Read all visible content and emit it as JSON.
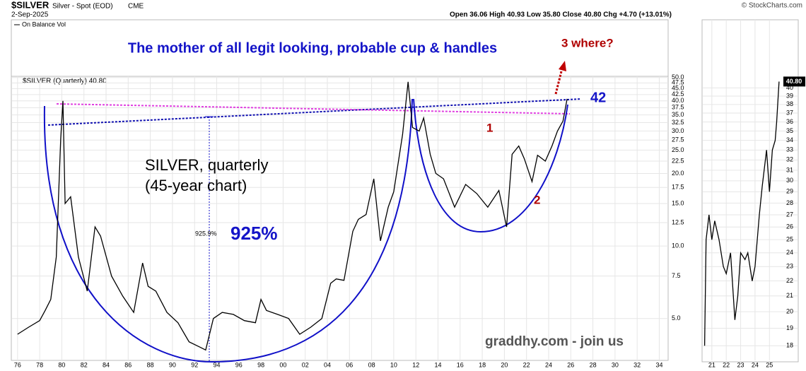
{
  "header": {
    "symbol": "$SILVER",
    "name": "Silver - Spot (EOD)",
    "exchange": "CME",
    "date": "2-Sep-2025",
    "source": "© StockCharts.com",
    "ohlc": "Open 36.06  High 40.93  Low 35.80  Close 40.80  Chg +4.70 (+13.01%)"
  },
  "indicator": "On Balance Vol",
  "chart_data": [
    {
      "type": "line",
      "title": "The mother of all legit looking, probable cup & handles",
      "log_scale": true,
      "grid": true,
      "annotations": [
        "SILVER, quarterly",
        "(45-year chart)",
        "925.9%",
        "925%",
        "1",
        "2",
        "3 where?",
        "42",
        "graddhy.com - join us"
      ],
      "x": [
        1976.0,
        1977.0,
        1978.0,
        1978.5,
        1979.0,
        1979.5,
        1979.9,
        1980.1,
        1980.3,
        1980.8,
        1981.5,
        1982.3,
        1983.0,
        1983.5,
        1984.5,
        1985.5,
        1986.5,
        1987.3,
        1987.8,
        1988.5,
        1989.5,
        1990.5,
        1991.5,
        1992.5,
        1993.0,
        1993.7,
        1994.5,
        1995.5,
        1996.5,
        1997.5,
        1998.0,
        1998.5,
        1999.5,
        2000.5,
        2001.5,
        2002.5,
        2003.5,
        2004.3,
        2004.8,
        2005.5,
        2006.3,
        2006.8,
        2007.5,
        2008.2,
        2008.8,
        2009.5,
        2010.0,
        2010.8,
        2011.3,
        2011.7,
        2012.3,
        2012.7,
        2013.3,
        2013.8,
        2014.5,
        2015.5,
        2016.5,
        2017.5,
        2018.5,
        2019.5,
        2020.2,
        2020.7,
        2021.3,
        2021.8,
        2022.5,
        2023.0,
        2023.7,
        2024.3,
        2024.8,
        2025.3,
        2025.67
      ],
      "series": [
        {
          "name": "$SILVER (Quarterly) 40.80",
          "color": "#000000",
          "values": [
            4.3,
            4.6,
            4.9,
            5.4,
            6.0,
            9.0,
            28,
            40,
            15,
            16,
            9,
            6.5,
            12,
            11,
            7.5,
            6.2,
            5.3,
            8.5,
            6.8,
            6.5,
            5.3,
            4.8,
            4.0,
            3.8,
            3.7,
            5.0,
            5.3,
            5.2,
            4.9,
            4.8,
            6.0,
            5.4,
            5.2,
            5.0,
            4.3,
            4.6,
            5.0,
            7.0,
            7.3,
            7.2,
            11.5,
            12.9,
            13.5,
            19,
            10.5,
            14.5,
            16.8,
            29,
            48,
            31,
            30,
            34,
            24,
            20,
            19,
            14.5,
            18,
            16.5,
            14.5,
            17,
            12,
            24,
            26,
            23,
            18.5,
            23.8,
            22.5,
            26,
            30,
            33,
            40.8
          ]
        }
      ],
      "xlim": [
        1975.5,
        2034.8
      ],
      "xticks": [
        {
          "value": 1976,
          "label": "76"
        },
        {
          "value": 1978,
          "label": "78"
        },
        {
          "value": 1980,
          "label": "80"
        },
        {
          "value": 1982,
          "label": "82"
        },
        {
          "value": 1984,
          "label": "84"
        },
        {
          "value": 1986,
          "label": "86"
        },
        {
          "value": 1988,
          "label": "88"
        },
        {
          "value": 1990,
          "label": "90"
        },
        {
          "value": 1992,
          "label": "92"
        },
        {
          "value": 1994,
          "label": "94"
        },
        {
          "value": 1996,
          "label": "96"
        },
        {
          "value": 1998,
          "label": "98"
        },
        {
          "value": 2000,
          "label": "00"
        },
        {
          "value": 2002,
          "label": "02"
        },
        {
          "value": 2004,
          "label": "04"
        },
        {
          "value": 2006,
          "label": "06"
        },
        {
          "value": 2008,
          "label": "08"
        },
        {
          "value": 2010,
          "label": "10"
        },
        {
          "value": 2012,
          "label": "12"
        },
        {
          "value": 2014,
          "label": "14"
        },
        {
          "value": 2016,
          "label": "16"
        },
        {
          "value": 2018,
          "label": "18"
        },
        {
          "value": 2020,
          "label": "20"
        },
        {
          "value": 2022,
          "label": "22"
        },
        {
          "value": 2024,
          "label": "24"
        },
        {
          "value": 2026,
          "label": "26"
        },
        {
          "value": 2028,
          "label": "28"
        },
        {
          "value": 2030,
          "label": "30"
        },
        {
          "value": 2032,
          "label": "32"
        },
        {
          "value": 2034,
          "label": "34"
        }
      ],
      "ylim": [
        3.35,
        50.6
      ],
      "yticks": [
        {
          "value": 5,
          "label": "5.0"
        },
        7.5,
        {
          "value": 10,
          "label": "10.0"
        },
        12.5,
        {
          "value": 15,
          "label": "15.0"
        },
        17.5,
        {
          "value": 20,
          "label": "20.0"
        },
        22.5,
        {
          "value": 25,
          "label": "25.0"
        },
        27.5,
        {
          "value": 30,
          "label": "30.0"
        },
        32.5,
        {
          "value": 35,
          "label": "35.0"
        },
        37.5,
        {
          "value": 40,
          "label": "40.0"
        },
        42.5,
        {
          "value": 45,
          "label": "45.0"
        },
        47.5,
        {
          "value": 50,
          "label": "50.0"
        }
      ]
    },
    {
      "type": "line",
      "log_scale": true,
      "grid": true,
      "x": [
        2020.5,
        2020.6,
        2020.8,
        2021.0,
        2021.2,
        2021.5,
        2021.8,
        2022.0,
        2022.3,
        2022.6,
        2022.8,
        2023.0,
        2023.3,
        2023.5,
        2023.8,
        2024.0,
        2024.3,
        2024.5,
        2024.8,
        2025.0,
        2025.2,
        2025.4,
        2025.5,
        2025.67
      ],
      "series": [
        {
          "color": "#000000",
          "values": [
            18,
            25,
            27,
            25,
            26.5,
            25,
            23,
            22.5,
            24,
            19.5,
            21,
            24,
            23.5,
            24,
            22,
            23,
            27,
            29.5,
            33,
            29,
            33,
            34,
            36,
            40.8
          ],
          "value_labels": [
            null,
            null,
            null,
            null,
            null,
            null,
            null,
            null,
            null,
            null,
            null,
            null,
            null,
            null,
            null,
            null,
            null,
            null,
            null,
            null,
            null,
            null,
            null,
            "40.80"
          ]
        }
      ],
      "xlim": [
        2020.37,
        2026.95
      ],
      "xticks": [
        {
          "value": 2021,
          "label": "21"
        },
        {
          "value": 2022,
          "label": "22"
        },
        {
          "value": 2023,
          "label": "23"
        },
        {
          "value": 2024,
          "label": "24"
        },
        {
          "value": 2025,
          "label": "25"
        }
      ],
      "ylim": [
        17.2,
        49.4
      ],
      "yticks": [
        18,
        19,
        20,
        21,
        22,
        23,
        24,
        25,
        26,
        27,
        28,
        29,
        30,
        31,
        32,
        33,
        34,
        35,
        36,
        37,
        38,
        39,
        40
      ]
    }
  ]
}
